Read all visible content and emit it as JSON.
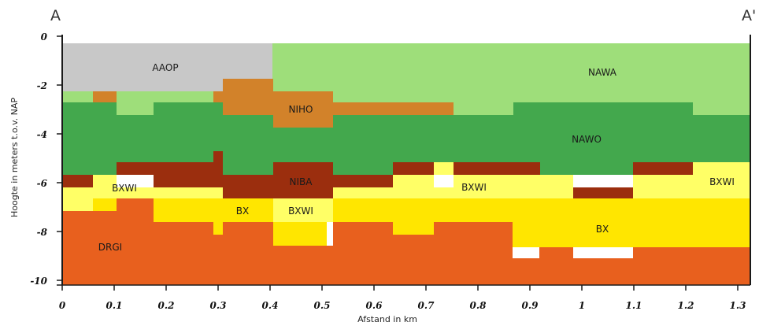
{
  "section": {
    "start_label": "A",
    "end_label": "A'",
    "x_axis_title": "Afstand in km",
    "y_axis_title": "Hoogte in meters t.o.v. NAP",
    "x_ticks": [
      "0",
      "0.1",
      "0.2",
      "0.3",
      "0.4",
      "0.5",
      "0.6",
      "0.7",
      "0.8",
      "0.9",
      "1",
      "1.1",
      "1.2",
      "1.3"
    ],
    "y_ticks": [
      "0",
      "-2",
      "-4",
      "-6",
      "-8",
      "-10"
    ],
    "x_range_km": [
      0,
      1.33
    ],
    "y_range_m": [
      -10.2,
      0
    ],
    "units": [
      "AAOP",
      "NAWA",
      "NIHO",
      "NAWO",
      "NIBA",
      "BXWI",
      "BXWI",
      "BXWI",
      "BX",
      "BXWI",
      "BX",
      "DRGI"
    ],
    "colors": {
      "AAOP": "#c8c8c8",
      "NAWA": "#9ede7a",
      "NIHO": "#d2822a",
      "NAWO": "#43a84d",
      "NIBA": "#9b2e0e",
      "BXWI": "#ffff66",
      "BX": "#ffe600",
      "DRGI": "#e8601e",
      "axis": "#1a1a1a"
    }
  }
}
